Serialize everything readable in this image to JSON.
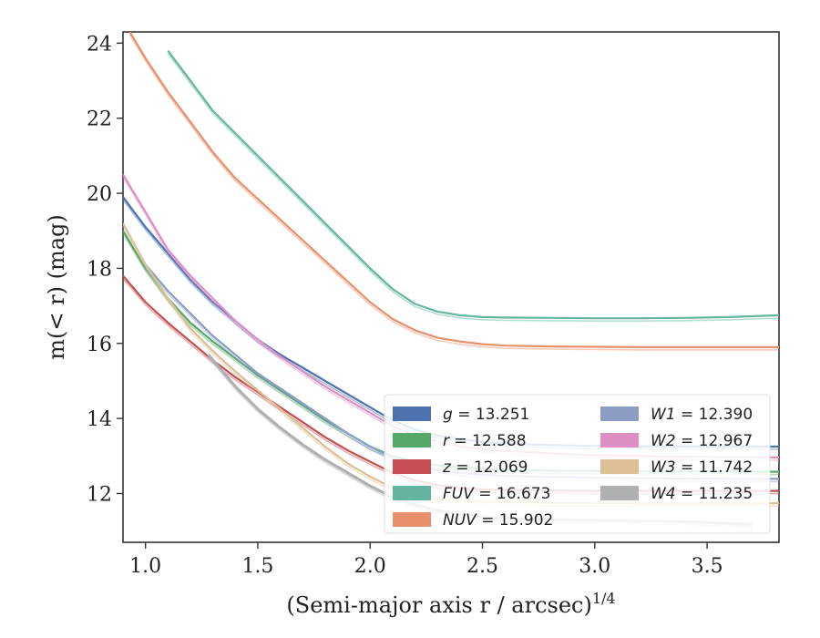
{
  "chart_data": {
    "type": "line",
    "title": "",
    "xlabel": "(Semi-major axis r / arcsec)",
    "xlabel_exponent": "1/4",
    "ylabel": "m(< r) (mag)",
    "xlim": [
      0.9,
      3.82
    ],
    "ylim": [
      24.3,
      10.7
    ],
    "y_inverted": true,
    "grid": false,
    "legend_position": "lower-right",
    "x_ticks": [
      "1.0",
      "1.5",
      "2.0",
      "2.5",
      "3.0",
      "3.5"
    ],
    "y_ticks": [
      "12",
      "14",
      "16",
      "18",
      "20",
      "22",
      "24"
    ],
    "series": [
      {
        "name": "g",
        "label_value": "= 13.251",
        "color": "#4c72b0",
        "x": [
          0.9,
          1.0,
          1.1,
          1.2,
          1.3,
          1.4,
          1.5,
          1.6,
          1.7,
          1.8,
          1.9,
          2.0,
          2.1,
          2.2,
          2.3,
          2.4,
          2.5,
          2.6,
          2.8,
          3.0,
          3.2,
          3.4,
          3.6,
          3.82
        ],
        "y": [
          19.9,
          19.1,
          18.4,
          17.7,
          17.1,
          16.6,
          16.1,
          15.7,
          15.35,
          15.0,
          14.65,
          14.3,
          13.95,
          13.7,
          13.55,
          13.45,
          13.38,
          13.33,
          13.29,
          13.27,
          13.26,
          13.25,
          13.25,
          13.25
        ]
      },
      {
        "name": "r",
        "label_value": "= 12.588",
        "color": "#55a868",
        "x": [
          0.9,
          1.0,
          1.1,
          1.2,
          1.3,
          1.4,
          1.5,
          1.6,
          1.7,
          1.8,
          1.9,
          2.0,
          2.1,
          2.2,
          2.3,
          2.4,
          2.5,
          2.6,
          2.8,
          3.0,
          3.2,
          3.4,
          3.6,
          3.82
        ],
        "y": [
          19.0,
          18.0,
          17.2,
          16.55,
          16.05,
          15.6,
          15.15,
          14.75,
          14.35,
          13.95,
          13.6,
          13.25,
          13.0,
          12.85,
          12.75,
          12.7,
          12.66,
          12.63,
          12.61,
          12.6,
          12.59,
          12.59,
          12.59,
          12.58
        ]
      },
      {
        "name": "z",
        "label_value": "= 12.069",
        "color": "#c44e52",
        "x": [
          0.9,
          1.0,
          1.1,
          1.2,
          1.3,
          1.4,
          1.5,
          1.6,
          1.7,
          1.8,
          1.9,
          2.0,
          2.1,
          2.2,
          2.3,
          2.4,
          2.5,
          2.6,
          2.8,
          3.0,
          3.2,
          3.4,
          3.6,
          3.82
        ],
        "y": [
          17.8,
          17.1,
          16.55,
          16.05,
          15.55,
          15.1,
          14.7,
          14.3,
          13.9,
          13.5,
          13.15,
          12.85,
          12.55,
          12.35,
          12.22,
          12.15,
          12.11,
          12.09,
          12.08,
          12.07,
          12.07,
          12.07,
          12.07,
          12.07
        ]
      },
      {
        "name": "FUV",
        "label_value": "= 16.673",
        "color": "#64b5a0",
        "x": [
          1.1,
          1.2,
          1.3,
          1.4,
          1.5,
          1.6,
          1.7,
          1.8,
          1.9,
          2.0,
          2.1,
          2.2,
          2.3,
          2.4,
          2.5,
          2.6,
          2.8,
          3.0,
          3.2,
          3.4,
          3.6,
          3.82
        ],
        "y": [
          23.8,
          23.0,
          22.2,
          21.6,
          21.0,
          20.4,
          19.8,
          19.2,
          18.6,
          18.0,
          17.45,
          17.05,
          16.85,
          16.75,
          16.7,
          16.69,
          16.68,
          16.67,
          16.67,
          16.68,
          16.7,
          16.75
        ]
      },
      {
        "name": "NUV",
        "label_value": "= 15.902",
        "color": "#e8906b",
        "x": [
          0.93,
          1.0,
          1.1,
          1.2,
          1.3,
          1.4,
          1.5,
          1.6,
          1.7,
          1.8,
          1.9,
          2.0,
          2.1,
          2.2,
          2.3,
          2.4,
          2.5,
          2.6,
          2.8,
          3.0,
          3.2,
          3.4,
          3.6,
          3.82
        ],
        "y": [
          24.3,
          23.6,
          22.7,
          21.9,
          21.1,
          20.4,
          19.85,
          19.3,
          18.75,
          18.2,
          17.65,
          17.1,
          16.65,
          16.35,
          16.15,
          16.05,
          15.98,
          15.94,
          15.92,
          15.91,
          15.9,
          15.9,
          15.9,
          15.9
        ]
      },
      {
        "name": "W1",
        "label_value": "= 12.390",
        "color": "#8c9dc4",
        "x": [
          1.0,
          1.1,
          1.2,
          1.3,
          1.4,
          1.5,
          1.6,
          1.7,
          1.8,
          1.9,
          2.0,
          2.1,
          2.2,
          2.3,
          2.4,
          2.5,
          2.6,
          2.8,
          3.0,
          3.2,
          3.4,
          3.6,
          3.82
        ],
        "y": [
          18.1,
          17.4,
          16.8,
          16.2,
          15.7,
          15.2,
          14.8,
          14.4,
          14.0,
          13.6,
          13.25,
          12.95,
          12.75,
          12.62,
          12.55,
          12.5,
          12.47,
          12.44,
          12.42,
          12.41,
          12.4,
          12.39,
          12.39
        ]
      },
      {
        "name": "W2",
        "label_value": "= 12.967",
        "color": "#dd8fc4",
        "x": [
          0.9,
          1.0,
          1.1,
          1.2,
          1.3,
          1.4,
          1.5,
          1.6,
          1.7,
          1.8,
          1.9,
          2.0,
          2.1,
          2.2,
          2.3,
          2.4,
          2.5,
          2.6,
          2.8,
          3.0,
          3.2,
          3.4,
          3.6,
          3.82
        ],
        "y": [
          20.5,
          19.5,
          18.5,
          17.8,
          17.2,
          16.6,
          16.1,
          15.65,
          15.25,
          14.85,
          14.5,
          14.15,
          13.8,
          13.55,
          13.38,
          13.25,
          13.18,
          13.13,
          13.07,
          13.02,
          13.0,
          12.98,
          12.97,
          12.96
        ]
      },
      {
        "name": "W3",
        "label_value": "= 11.742",
        "color": "#dcbf94",
        "x": [
          0.9,
          1.0,
          1.1,
          1.2,
          1.3,
          1.4,
          1.5,
          1.6,
          1.7,
          1.8,
          1.9,
          2.0,
          2.1,
          2.2,
          2.3,
          2.4,
          2.5,
          2.6,
          2.8,
          3.0,
          3.2,
          3.4,
          3.6,
          3.82
        ],
        "y": [
          19.2,
          18.1,
          17.2,
          16.4,
          15.8,
          15.25,
          14.75,
          14.25,
          13.75,
          13.25,
          12.8,
          12.45,
          12.15,
          11.95,
          11.85,
          11.8,
          11.78,
          11.76,
          11.75,
          11.75,
          11.74,
          11.74,
          11.74,
          11.74
        ]
      },
      {
        "name": "W4",
        "label_value": "= 11.235",
        "color": "#b0b0b0",
        "x": [
          1.28,
          1.35,
          1.4,
          1.5,
          1.6,
          1.7,
          1.8,
          1.9,
          2.0,
          2.1,
          2.2,
          2.3,
          2.4,
          2.5,
          2.6,
          2.8,
          3.0,
          3.2,
          3.4,
          3.6,
          3.7
        ],
        "y": [
          15.7,
          15.2,
          14.85,
          14.25,
          13.75,
          13.3,
          12.9,
          12.55,
          12.2,
          11.9,
          11.7,
          11.55,
          11.45,
          11.38,
          11.34,
          11.3,
          11.28,
          11.27,
          11.25,
          11.2,
          11.18
        ]
      }
    ]
  }
}
